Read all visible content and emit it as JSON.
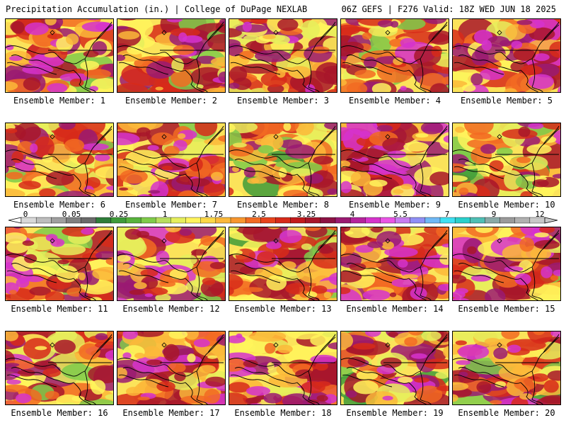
{
  "header": {
    "left": "Precipitation Accumulation (in.) | College of DuPage NEXLAB",
    "right": "06Z GEFS | F276 Valid: 18Z WED JUN 18 2025"
  },
  "panels": [
    {
      "label": "Ensemble Member: 1",
      "wetness": 0.65,
      "blobs": 1
    },
    {
      "label": "Ensemble Member: 2",
      "wetness": 0.55,
      "blobs": 2
    },
    {
      "label": "Ensemble Member: 3",
      "wetness": 0.55,
      "blobs": 3
    },
    {
      "label": "Ensemble Member: 4",
      "wetness": 0.6,
      "blobs": 4
    },
    {
      "label": "Ensemble Member: 5",
      "wetness": 0.7,
      "blobs": 5
    },
    {
      "label": "Ensemble Member: 6",
      "wetness": 0.55,
      "blobs": 6
    },
    {
      "label": "Ensemble Member: 7",
      "wetness": 0.7,
      "blobs": 7
    },
    {
      "label": "Ensemble Member: 8",
      "wetness": 0.35,
      "blobs": 8
    },
    {
      "label": "Ensemble Member: 9",
      "wetness": 0.7,
      "blobs": 9
    },
    {
      "label": "Ensemble Member: 10",
      "wetness": 0.45,
      "blobs": 10
    },
    {
      "label": "Ensemble Member: 11",
      "wetness": 0.65,
      "blobs": 11
    },
    {
      "label": "Ensemble Member: 12",
      "wetness": 0.65,
      "blobs": 12
    },
    {
      "label": "Ensemble Member: 13",
      "wetness": 0.55,
      "blobs": 13
    },
    {
      "label": "Ensemble Member: 14",
      "wetness": 0.7,
      "blobs": 14
    },
    {
      "label": "Ensemble Member: 15",
      "wetness": 0.65,
      "blobs": 15
    },
    {
      "label": "Ensemble Member: 16",
      "wetness": 0.6,
      "blobs": 16
    },
    {
      "label": "Ensemble Member: 17",
      "wetness": 0.65,
      "blobs": 17
    },
    {
      "label": "Ensemble Member: 18",
      "wetness": 0.65,
      "blobs": 18
    },
    {
      "label": "Ensemble Member: 19",
      "wetness": 0.55,
      "blobs": 19
    },
    {
      "label": "Ensemble Member: 20",
      "wetness": 0.6,
      "blobs": 20
    }
  ],
  "colorbar": {
    "ticks": [
      "0",
      "0.05",
      "0.25",
      "1",
      "1.75",
      "2.5",
      "3.25",
      "4",
      "5.5",
      "7",
      "9",
      "12"
    ],
    "colors": [
      "#d9d9d9",
      "#bdbdbd",
      "#9f9f9f",
      "#808080",
      "#6a6a6a",
      "#2f7d3a",
      "#3e9b3a",
      "#58b33c",
      "#7fcb4a",
      "#b8de5e",
      "#e6ef5c",
      "#fff45c",
      "#fcd846",
      "#fbb83a",
      "#f8962e",
      "#f26a22",
      "#e8441c",
      "#d72a1a",
      "#c21a1c",
      "#a8162a",
      "#8c1244",
      "#9a1a72",
      "#b5249c",
      "#d633cc",
      "#ea55e6",
      "#c77cf0",
      "#8f8ff5",
      "#6fb8f5",
      "#3fe0f2",
      "#2ad0cc",
      "#4fbfb5",
      "#8aa9a7",
      "#9a9a9a",
      "#b0b0b0",
      "#c8c8c8"
    ]
  }
}
